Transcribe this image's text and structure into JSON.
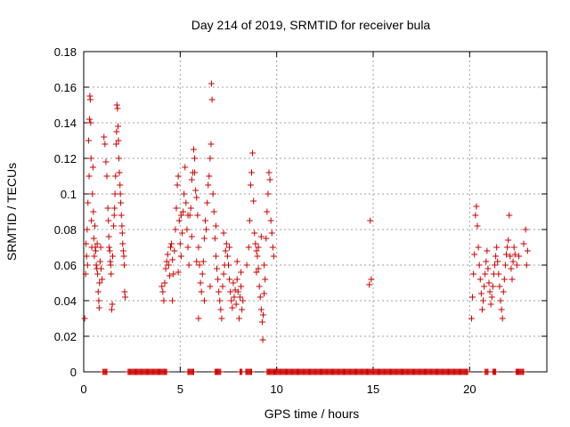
{
  "chart_data": {
    "type": "scatter",
    "title": "Day 214 of 2019, SRMTID for receiver bula",
    "xlabel": "GPS time / hours",
    "ylabel": "SRMTID / TECUs",
    "xlim": [
      0,
      24
    ],
    "ylim": [
      0,
      0.18
    ],
    "xticks": [
      0,
      5,
      10,
      15,
      20
    ],
    "xtick_labels": [
      "0",
      "5",
      "10",
      "15",
      "20"
    ],
    "yticks": [
      0,
      0.02,
      0.04,
      0.06,
      0.08,
      0.1,
      0.12,
      0.14,
      0.16,
      0.18
    ],
    "ytick_labels": [
      "0",
      "0.02",
      "0.04",
      "0.06",
      "0.08",
      "0.1",
      "0.12",
      "0.14",
      "0.16",
      "0.18"
    ],
    "grid": true,
    "marker": "plus",
    "color": "#cc0000",
    "series": [
      {
        "name": "SRMTID",
        "points": [
          [
            0.05,
            0.03
          ],
          [
            0.1,
            0.055
          ],
          [
            0.12,
            0.072
          ],
          [
            0.15,
            0.065
          ],
          [
            0.18,
            0.08
          ],
          [
            0.2,
            0.06
          ],
          [
            0.22,
            0.095
          ],
          [
            0.25,
            0.13
          ],
          [
            0.28,
            0.11
          ],
          [
            0.3,
            0.142
          ],
          [
            0.32,
            0.155
          ],
          [
            0.34,
            0.153
          ],
          [
            0.36,
            0.14
          ],
          [
            0.38,
            0.12
          ],
          [
            0.4,
            0.085
          ],
          [
            0.42,
            0.07
          ],
          [
            0.45,
            0.1
          ],
          [
            0.48,
            0.115
          ],
          [
            0.5,
            0.09
          ],
          [
            0.52,
            0.075
          ],
          [
            0.55,
            0.065
          ],
          [
            0.58,
            0.082
          ],
          [
            0.6,
            0.07
          ],
          [
            0.62,
            0.068
          ],
          [
            0.65,
            0.06
          ],
          [
            0.68,
            0.058
          ],
          [
            0.7,
            0.072
          ],
          [
            0.72,
            0.055
          ],
          [
            0.75,
            0.045
          ],
          [
            0.78,
            0.04
          ],
          [
            0.8,
            0.036
          ],
          [
            0.82,
            0.05
          ],
          [
            0.85,
            0.062
          ],
          [
            0.88,
            0.07
          ],
          [
            0.9,
            0.058
          ],
          [
            0.95,
            0.052
          ],
          [
            1.05,
            0.132
          ],
          [
            1.1,
            0.128
          ],
          [
            1.15,
            0.118
          ],
          [
            1.2,
            0.11
          ],
          [
            1.25,
            0.092
          ],
          [
            1.28,
            0.085
          ],
          [
            1.3,
            0.076
          ],
          [
            1.32,
            0.07
          ],
          [
            1.35,
            0.068
          ],
          [
            1.38,
            0.062
          ],
          [
            1.4,
            0.06
          ],
          [
            1.42,
            0.055
          ],
          [
            1.45,
            0.035
          ],
          [
            1.48,
            0.038
          ],
          [
            1.5,
            0.065
          ],
          [
            1.55,
            0.082
          ],
          [
            1.58,
            0.088
          ],
          [
            1.6,
            0.092
          ],
          [
            1.62,
            0.1
          ],
          [
            1.65,
            0.11
          ],
          [
            1.68,
            0.128
          ],
          [
            1.7,
            0.135
          ],
          [
            1.72,
            0.15
          ],
          [
            1.75,
            0.148
          ],
          [
            1.78,
            0.138
          ],
          [
            1.8,
            0.13
          ],
          [
            1.82,
            0.12
          ],
          [
            1.85,
            0.112
          ],
          [
            1.88,
            0.105
          ],
          [
            1.9,
            0.1
          ],
          [
            1.92,
            0.095
          ],
          [
            1.95,
            0.088
          ],
          [
            1.98,
            0.082
          ],
          [
            2.0,
            0.078
          ],
          [
            2.02,
            0.072
          ],
          [
            2.05,
            0.068
          ],
          [
            2.08,
            0.065
          ],
          [
            2.1,
            0.06
          ],
          [
            2.12,
            0.045
          ],
          [
            2.15,
            0.042
          ],
          [
            4.05,
            0.048
          ],
          [
            4.1,
            0.045
          ],
          [
            4.15,
            0.04
          ],
          [
            4.2,
            0.05
          ],
          [
            4.25,
            0.058
          ],
          [
            4.3,
            0.062
          ],
          [
            4.35,
            0.066
          ],
          [
            4.4,
            0.06
          ],
          [
            4.45,
            0.054
          ],
          [
            4.5,
            0.07
          ],
          [
            4.55,
            0.072
          ],
          [
            4.6,
            0.063
          ],
          [
            4.65,
            0.055
          ],
          [
            4.7,
            0.068
          ],
          [
            4.75,
            0.08
          ],
          [
            4.8,
            0.092
          ],
          [
            4.85,
            0.105
          ],
          [
            4.9,
            0.11
          ],
          [
            4.95,
            0.085
          ],
          [
            5.0,
            0.072
          ],
          [
            5.05,
            0.065
          ],
          [
            5.1,
            0.078
          ],
          [
            5.15,
            0.09
          ],
          [
            5.2,
            0.1
          ],
          [
            5.25,
            0.115
          ],
          [
            5.3,
            0.095
          ],
          [
            5.35,
            0.08
          ],
          [
            5.4,
            0.07
          ],
          [
            5.45,
            0.06
          ],
          [
            5.5,
            0.088
          ],
          [
            5.55,
            0.092
          ],
          [
            5.6,
            0.108
          ],
          [
            5.65,
            0.112
          ],
          [
            5.7,
            0.125
          ],
          [
            5.75,
            0.12
          ],
          [
            5.8,
            0.102
          ],
          [
            5.85,
            0.098
          ],
          [
            5.9,
            0.088
          ],
          [
            5.95,
            0.07
          ],
          [
            6.0,
            0.06
          ],
          [
            6.05,
            0.05
          ],
          [
            6.1,
            0.045
          ],
          [
            6.15,
            0.055
          ],
          [
            6.2,
            0.062
          ],
          [
            6.25,
            0.075
          ],
          [
            6.3,
            0.085
          ],
          [
            6.35,
            0.08
          ],
          [
            6.4,
            0.095
          ],
          [
            6.45,
            0.105
          ],
          [
            6.5,
            0.11
          ],
          [
            6.55,
            0.12
          ],
          [
            6.6,
            0.128
          ],
          [
            6.62,
            0.162
          ],
          [
            6.65,
            0.153
          ],
          [
            6.7,
            0.1
          ],
          [
            6.75,
            0.09
          ],
          [
            6.8,
            0.075
          ],
          [
            6.85,
            0.065
          ],
          [
            6.9,
            0.058
          ],
          [
            6.95,
            0.052
          ],
          [
            7.0,
            0.045
          ],
          [
            7.05,
            0.04
          ],
          [
            7.1,
            0.035
          ],
          [
            7.15,
            0.03
          ],
          [
            7.2,
            0.048
          ],
          [
            7.25,
            0.055
          ],
          [
            7.3,
            0.06
          ],
          [
            7.35,
            0.068
          ],
          [
            7.4,
            0.072
          ],
          [
            7.45,
            0.065
          ],
          [
            7.5,
            0.06
          ],
          [
            7.55,
            0.052
          ],
          [
            7.6,
            0.045
          ],
          [
            7.65,
            0.04
          ],
          [
            7.7,
            0.036
          ],
          [
            7.75,
            0.05
          ],
          [
            7.8,
            0.042
          ],
          [
            7.85,
            0.046
          ],
          [
            7.9,
            0.038
          ],
          [
            7.95,
            0.052
          ],
          [
            8.0,
            0.045
          ],
          [
            8.05,
            0.03
          ],
          [
            8.1,
            0.042
          ],
          [
            8.15,
            0.048
          ],
          [
            8.2,
            0.035
          ],
          [
            8.25,
            0.04
          ],
          [
            4.6,
            0.04
          ],
          [
            4.9,
            0.056
          ],
          [
            5.4,
            0.088
          ],
          [
            5.6,
            0.076
          ],
          [
            5.85,
            0.062
          ],
          [
            5.95,
            0.03
          ],
          [
            6.25,
            0.04
          ],
          [
            6.55,
            0.048
          ],
          [
            6.85,
            0.082
          ],
          [
            7.25,
            0.078
          ],
          [
            7.55,
            0.07
          ],
          [
            7.95,
            0.062
          ],
          [
            8.15,
            0.056
          ],
          [
            5.75,
            0.112
          ],
          [
            5.05,
            0.088
          ],
          [
            8.45,
            0.06
          ],
          [
            8.55,
            0.07
          ],
          [
            8.6,
            0.085
          ],
          [
            8.65,
            0.105
          ],
          [
            8.7,
            0.112
          ],
          [
            8.75,
            0.123
          ],
          [
            8.8,
            0.096
          ],
          [
            8.85,
            0.078
          ],
          [
            8.9,
            0.072
          ],
          [
            8.95,
            0.068
          ],
          [
            9.0,
            0.065
          ],
          [
            9.05,
            0.058
          ],
          [
            9.1,
            0.048
          ],
          [
            9.15,
            0.042
          ],
          [
            9.2,
            0.035
          ],
          [
            9.25,
            0.028
          ],
          [
            9.28,
            0.018
          ],
          [
            9.3,
            0.032
          ],
          [
            9.35,
            0.044
          ],
          [
            9.4,
            0.052
          ],
          [
            9.45,
            0.075
          ],
          [
            9.5,
            0.09
          ],
          [
            9.55,
            0.1
          ],
          [
            9.6,
            0.112
          ],
          [
            9.65,
            0.108
          ],
          [
            9.7,
            0.085
          ],
          [
            9.75,
            0.078
          ],
          [
            9.8,
            0.07
          ],
          [
            9.85,
            0.065
          ],
          [
            9.2,
            0.076
          ],
          [
            8.95,
            0.056
          ],
          [
            9.05,
            0.07
          ],
          [
            9.35,
            0.06
          ],
          [
            14.85,
            0.085
          ],
          [
            14.8,
            0.049
          ],
          [
            14.9,
            0.052
          ],
          [
            20.1,
            0.03
          ],
          [
            20.15,
            0.042
          ],
          [
            20.2,
            0.055
          ],
          [
            20.25,
            0.066
          ],
          [
            20.3,
            0.088
          ],
          [
            20.35,
            0.093
          ],
          [
            20.4,
            0.082
          ],
          [
            20.45,
            0.07
          ],
          [
            20.5,
            0.06
          ],
          [
            20.55,
            0.052
          ],
          [
            20.6,
            0.044
          ],
          [
            20.65,
            0.035
          ],
          [
            20.7,
            0.04
          ],
          [
            20.75,
            0.048
          ],
          [
            20.8,
            0.055
          ],
          [
            20.85,
            0.062
          ],
          [
            20.9,
            0.068
          ],
          [
            20.95,
            0.058
          ],
          [
            21.0,
            0.05
          ],
          [
            21.05,
            0.045
          ],
          [
            21.1,
            0.038
          ],
          [
            21.15,
            0.042
          ],
          [
            21.2,
            0.048
          ],
          [
            21.25,
            0.055
          ],
          [
            21.3,
            0.06
          ],
          [
            21.35,
            0.065
          ],
          [
            21.4,
            0.07
          ],
          [
            21.45,
            0.062
          ],
          [
            21.5,
            0.055
          ],
          [
            21.55,
            0.048
          ],
          [
            21.6,
            0.04
          ],
          [
            21.65,
            0.035
          ],
          [
            21.7,
            0.03
          ],
          [
            21.75,
            0.045
          ],
          [
            21.8,
            0.052
          ],
          [
            21.85,
            0.06
          ],
          [
            21.9,
            0.066
          ],
          [
            21.95,
            0.07
          ],
          [
            22.0,
            0.074
          ],
          [
            22.05,
            0.088
          ],
          [
            22.1,
            0.065
          ],
          [
            22.15,
            0.058
          ],
          [
            22.2,
            0.052
          ],
          [
            22.25,
            0.062
          ],
          [
            22.3,
            0.07
          ],
          [
            22.35,
            0.066
          ],
          [
            22.45,
            0.06
          ],
          [
            22.55,
            0.065
          ],
          [
            22.8,
            0.072
          ],
          [
            22.9,
            0.08
          ],
          [
            23.0,
            0.068
          ],
          [
            22.95,
            0.06
          ]
        ]
      }
    ],
    "zero_segments": [
      [
        1.0,
        1.2
      ],
      [
        2.3,
        4.3
      ],
      [
        5.4,
        5.7
      ],
      [
        6.8,
        7.1
      ],
      [
        8.1,
        8.2
      ],
      [
        8.4,
        8.7
      ],
      [
        9.5,
        19.9
      ],
      [
        20.8,
        20.95
      ],
      [
        21.2,
        21.35
      ],
      [
        22.4,
        22.8
      ]
    ]
  }
}
